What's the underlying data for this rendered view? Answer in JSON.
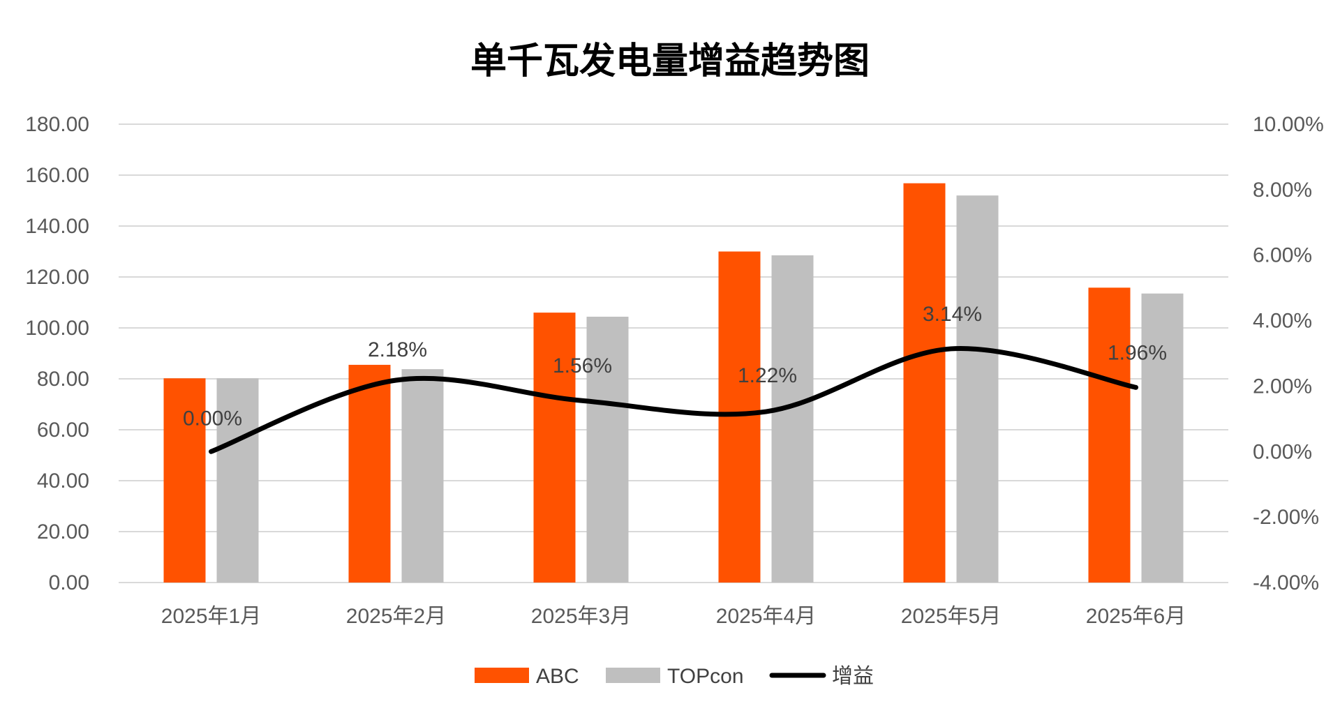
{
  "chart_data": {
    "type": "bar",
    "title": "单千瓦发电量增益趋势图",
    "categories": [
      "2025年1月",
      "2025年2月",
      "2025年3月",
      "2025年4月",
      "2025年5月",
      "2025年6月"
    ],
    "series": [
      {
        "name": "ABC",
        "type": "bar",
        "axis": "left",
        "color": "#FF5200",
        "values": [
          80.2,
          85.5,
          106.0,
          130.0,
          156.8,
          115.8
        ]
      },
      {
        "name": "TOPcon",
        "type": "bar",
        "axis": "left",
        "color": "#BFBFBF",
        "values": [
          80.2,
          83.8,
          104.4,
          128.5,
          152.0,
          113.5
        ]
      },
      {
        "name": "增益",
        "type": "line",
        "axis": "right",
        "color": "#000000",
        "smooth": true,
        "values": [
          0.0,
          2.18,
          1.56,
          1.22,
          3.14,
          1.96
        ],
        "labels": [
          "0.00%",
          "2.18%",
          "1.56%",
          "1.22%",
          "3.14%",
          "1.96%"
        ]
      }
    ],
    "y_left": {
      "min": 0,
      "max": 180,
      "step": 20,
      "tick_labels": [
        "0.00",
        "20.00",
        "40.00",
        "60.00",
        "80.00",
        "100.00",
        "120.00",
        "140.00",
        "160.00",
        "180.00"
      ]
    },
    "y_right": {
      "min": -4,
      "max": 10,
      "step": 2,
      "tick_labels": [
        "-4.00%",
        "-2.00%",
        "0.00%",
        "2.00%",
        "4.00%",
        "6.00%",
        "8.00%",
        "10.00%"
      ]
    },
    "grid": true,
    "legend": "bottom",
    "gridline_color": "#D9D9D9"
  }
}
